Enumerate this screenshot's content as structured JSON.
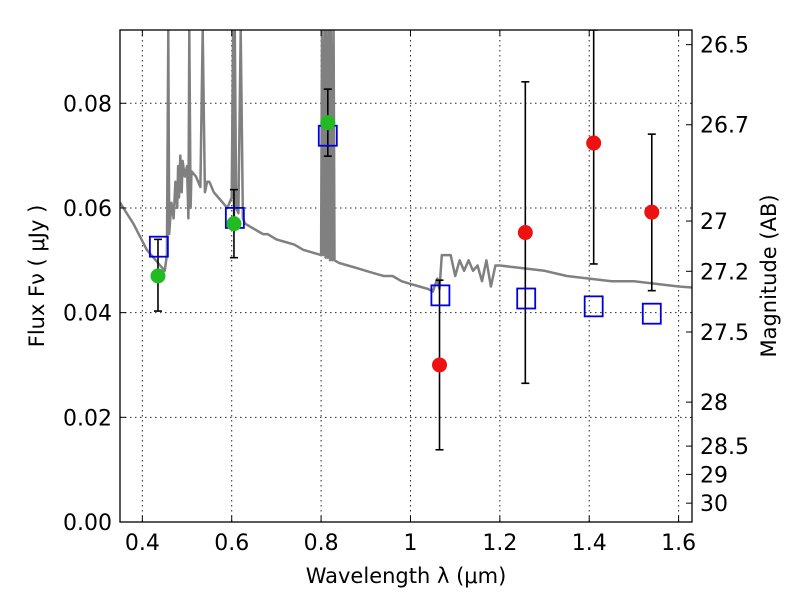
{
  "chart_data": {
    "type": "scatter",
    "xlabel": "Wavelength  λ (μm)",
    "ylabel": "Flux  Fν  ( μJy )",
    "y2label": "Magnitude (AB)",
    "xlim": [
      0.35,
      1.63
    ],
    "ylim": [
      0.0,
      0.094
    ],
    "grid": true,
    "x_ticks": [
      0.4,
      0.6,
      0.8,
      1.0,
      1.2,
      1.4,
      1.6
    ],
    "x_tick_labels": [
      "0.4",
      "0.6",
      "0.8",
      "1",
      "1.2",
      "1.4",
      "1.6"
    ],
    "y_ticks": [
      0.0,
      0.02,
      0.04,
      0.06,
      0.08
    ],
    "y_tick_labels": [
      "0.00",
      "0.02",
      "0.04",
      "0.06",
      "0.08"
    ],
    "y2_ticks": [
      {
        "label": "26.5",
        "flux": 0.0912
      },
      {
        "label": "26.7",
        "flux": 0.0759
      },
      {
        "label": "27",
        "flux": 0.0575
      },
      {
        "label": "27.2",
        "flux": 0.0479
      },
      {
        "label": "27.5",
        "flux": 0.0363
      },
      {
        "label": "28",
        "flux": 0.0229
      },
      {
        "label": "28.5",
        "flux": 0.0145
      },
      {
        "label": "29",
        "flux": 0.0091
      },
      {
        "label": "30",
        "flux": 0.0036
      }
    ],
    "series": [
      {
        "kind": "line",
        "color": "#808080",
        "x": [
          0.35,
          0.38,
          0.41,
          0.43,
          0.44,
          0.45,
          0.455,
          0.458,
          0.46,
          0.465,
          0.47,
          0.474,
          0.478,
          0.48,
          0.482,
          0.485,
          0.488,
          0.49,
          0.495,
          0.5,
          0.503,
          0.505,
          0.508,
          0.51,
          0.52,
          0.53,
          0.535,
          0.54,
          0.545,
          0.55,
          0.56,
          0.57,
          0.58,
          0.59,
          0.6,
          0.603,
          0.605,
          0.607,
          0.61,
          0.615,
          0.62,
          0.625,
          0.63,
          0.64,
          0.65,
          0.66,
          0.67,
          0.68,
          0.69,
          0.7,
          0.72,
          0.74,
          0.76,
          0.78,
          0.8,
          0.802,
          0.805,
          0.808,
          0.81,
          0.812,
          0.815,
          0.818,
          0.82,
          0.822,
          0.825,
          0.828,
          0.83,
          0.84,
          0.86,
          0.88,
          0.9,
          0.92,
          0.94,
          0.96,
          0.98,
          1.0,
          1.02,
          1.04,
          1.05,
          1.06,
          1.065,
          1.07,
          1.08,
          1.09,
          1.1,
          1.11,
          1.12,
          1.13,
          1.14,
          1.15,
          1.16,
          1.17,
          1.18,
          1.19,
          1.2,
          1.25,
          1.3,
          1.35,
          1.4,
          1.45,
          1.5,
          1.55,
          1.6,
          1.63
        ],
        "y": [
          0.061,
          0.057,
          0.052,
          0.05,
          0.049,
          0.048,
          0.051,
          0.094,
          0.055,
          0.061,
          0.058,
          0.065,
          0.06,
          0.068,
          0.062,
          0.07,
          0.063,
          0.069,
          0.066,
          0.068,
          0.058,
          0.094,
          0.06,
          0.067,
          0.066,
          0.064,
          0.094,
          0.063,
          0.065,
          0.065,
          0.063,
          0.062,
          0.061,
          0.06,
          0.062,
          0.094,
          0.058,
          0.094,
          0.06,
          0.059,
          0.094,
          0.058,
          0.057,
          0.0565,
          0.056,
          0.0555,
          0.055,
          0.055,
          0.0545,
          0.054,
          0.0535,
          0.053,
          0.052,
          0.0515,
          0.051,
          0.094,
          0.051,
          0.094,
          0.0505,
          0.094,
          0.0505,
          0.094,
          0.05,
          0.094,
          0.05,
          0.094,
          0.05,
          0.0495,
          0.049,
          0.0485,
          0.048,
          0.0475,
          0.047,
          0.047,
          0.046,
          0.0455,
          0.045,
          0.0445,
          0.044,
          0.0465,
          0.0445,
          0.051,
          0.051,
          0.051,
          0.047,
          0.05,
          0.048,
          0.05,
          0.048,
          0.049,
          0.046,
          0.05,
          0.045,
          0.049,
          0.049,
          0.0485,
          0.048,
          0.047,
          0.0465,
          0.046,
          0.046,
          0.0455,
          0.045,
          0.0448
        ]
      },
      {
        "kind": "points_with_error",
        "marker": "circle",
        "color": "#22bb22",
        "points": [
          {
            "x": 0.435,
            "y": 0.047,
            "ylo": 0.0403,
            "yhi": 0.054
          },
          {
            "x": 0.605,
            "y": 0.057,
            "ylo": 0.0505,
            "yhi": 0.0635
          },
          {
            "x": 0.815,
            "y": 0.0763,
            "ylo": 0.0699,
            "yhi": 0.0827
          }
        ]
      },
      {
        "kind": "points_with_error",
        "marker": "circle",
        "color": "#ee1111",
        "points": [
          {
            "x": 1.065,
            "y": 0.03,
            "ylo": 0.0138,
            "yhi": 0.0462
          },
          {
            "x": 1.257,
            "y": 0.0553,
            "ylo": 0.0265,
            "yhi": 0.0841
          },
          {
            "x": 1.41,
            "y": 0.0724,
            "ylo": 0.0493,
            "yhi": 0.094
          },
          {
            "x": 1.54,
            "y": 0.0592,
            "ylo": 0.0442,
            "yhi": 0.0741
          }
        ]
      },
      {
        "kind": "points",
        "marker": "open-square",
        "color": "#0000dd",
        "points": [
          {
            "x": 0.437,
            "y": 0.0526
          },
          {
            "x": 0.607,
            "y": 0.0581
          },
          {
            "x": 0.815,
            "y": 0.0738
          },
          {
            "x": 1.067,
            "y": 0.0433
          },
          {
            "x": 1.259,
            "y": 0.0427
          },
          {
            "x": 1.41,
            "y": 0.0412
          },
          {
            "x": 1.54,
            "y": 0.0398
          }
        ]
      }
    ]
  }
}
